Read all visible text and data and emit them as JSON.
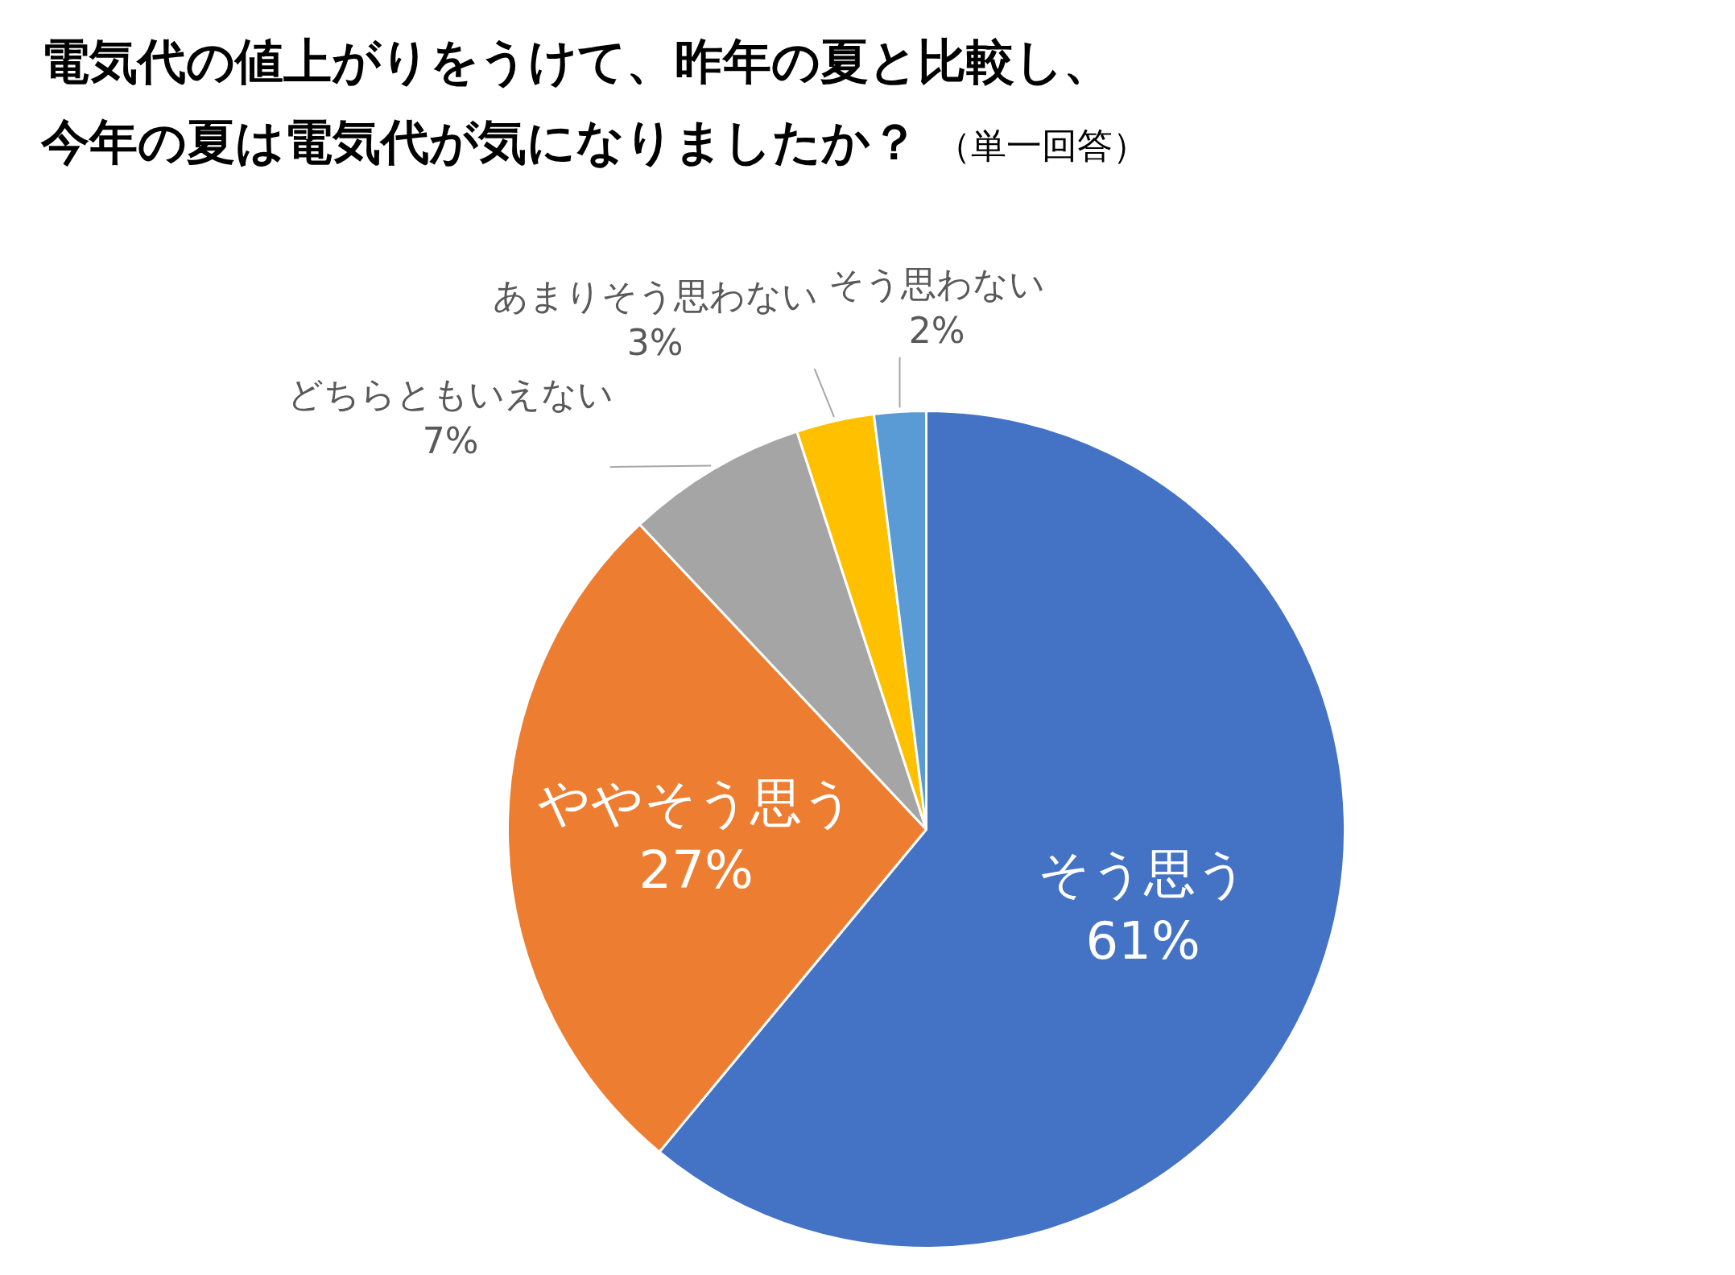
{
  "chart_data": {
    "type": "pie",
    "title": "電気代の値上がりをうけて、昨年の夏と比較し、今年の夏は電気代が気になりましたか？",
    "subtitle": "（単一回答）",
    "categories": [
      "そう思う",
      "ややそう思う",
      "どちらともいえない",
      "あまりそう思わない",
      "そう思わない"
    ],
    "values": [
      61,
      27,
      7,
      3,
      2
    ],
    "colors": [
      "#4472c4",
      "#ed7d31",
      "#a5a5a5",
      "#ffc000",
      "#5b9bd5"
    ],
    "value_labels": [
      "61%",
      "27%",
      "7%",
      "3%",
      "2%"
    ]
  }
}
